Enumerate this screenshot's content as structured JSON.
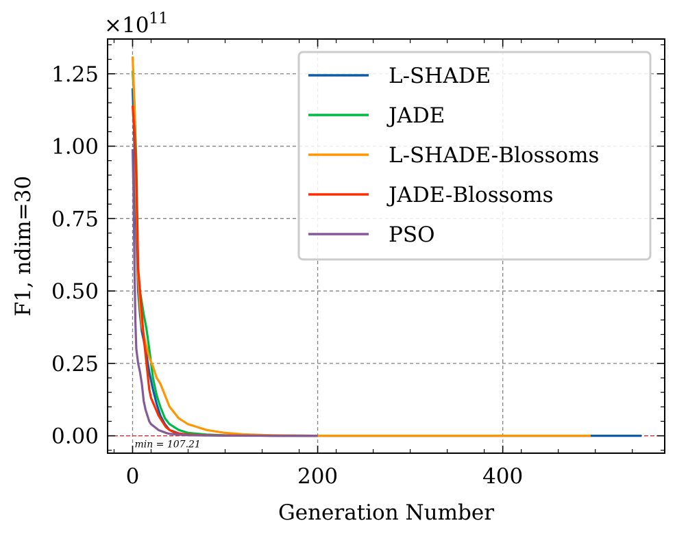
{
  "chart_data": {
    "type": "line",
    "title": "",
    "xlabel": "Generation Number",
    "ylabel": "F1, ndim=30",
    "y_scale_prefix": "×10",
    "y_scale_exponent": "11",
    "xlim": [
      -27,
      575
    ],
    "ylim": [
      -0.06,
      1.37
    ],
    "xticks": [
      0,
      200,
      400
    ],
    "xtick_labels": [
      "0",
      "200",
      "400"
    ],
    "yticks": [
      0,
      0.25,
      0.5,
      0.75,
      1.0,
      1.25
    ],
    "ytick_labels": [
      "0.00",
      "0.25",
      "0.50",
      "0.75",
      "1.00",
      "1.25"
    ],
    "grid": true,
    "legend_position": "top-right",
    "min_line_value": 0,
    "min_annotation": "min = 107.21",
    "series": [
      {
        "name": "L-SHADE",
        "color": "#0C5DA5",
        "x": [
          0,
          2,
          4,
          6,
          8,
          10,
          12,
          15,
          18,
          22,
          26,
          30,
          35,
          40,
          50,
          60,
          80,
          100,
          150,
          200,
          300,
          400,
          500,
          550
        ],
        "y": [
          1.2,
          1.0,
          0.7,
          0.5,
          0.42,
          0.36,
          0.33,
          0.28,
          0.22,
          0.16,
          0.11,
          0.07,
          0.04,
          0.02,
          0.008,
          0.004,
          0.002,
          0.001,
          0.0003,
          0.0001,
          0,
          0,
          0,
          0
        ]
      },
      {
        "name": "JADE",
        "color": "#00B945",
        "x": [
          0,
          2,
          4,
          6,
          8,
          10,
          12,
          15,
          18,
          22,
          26,
          30,
          35,
          40,
          45,
          50,
          60,
          80,
          100,
          150,
          200
        ],
        "y": [
          1.26,
          1.15,
          0.95,
          0.57,
          0.5,
          0.46,
          0.42,
          0.37,
          0.3,
          0.2,
          0.14,
          0.1,
          0.06,
          0.04,
          0.03,
          0.02,
          0.01,
          0.004,
          0.002,
          0.0005,
          0
        ]
      },
      {
        "name": "L-SHADE-Blossoms",
        "color": "#FF9500",
        "x": [
          0,
          2,
          4,
          6,
          8,
          10,
          14,
          18,
          22,
          26,
          30,
          35,
          40,
          50,
          60,
          70,
          80,
          100,
          120,
          150,
          200,
          300,
          400,
          495
        ],
        "y": [
          1.31,
          1.15,
          0.8,
          0.55,
          0.45,
          0.38,
          0.32,
          0.27,
          0.24,
          0.2,
          0.18,
          0.14,
          0.1,
          0.06,
          0.04,
          0.03,
          0.02,
          0.01,
          0.005,
          0.002,
          0,
          0,
          0,
          0
        ]
      },
      {
        "name": "JADE-Blossoms",
        "color": "#FF2C00",
        "x": [
          0,
          2,
          4,
          6,
          8,
          10,
          12,
          14,
          16,
          18,
          20,
          24,
          28,
          32,
          36,
          40,
          45,
          50,
          60,
          80,
          100,
          150,
          200
        ],
        "y": [
          1.14,
          1.05,
          0.9,
          0.58,
          0.5,
          0.42,
          0.34,
          0.28,
          0.22,
          0.16,
          0.13,
          0.1,
          0.07,
          0.05,
          0.03,
          0.02,
          0.012,
          0.008,
          0.004,
          0.002,
          0.001,
          0.0002,
          0
        ]
      },
      {
        "name": "PSO",
        "color": "#845B97",
        "x": [
          0,
          1,
          2,
          3,
          4,
          6,
          8,
          10,
          12,
          14,
          16,
          18,
          20,
          24,
          28,
          32,
          36,
          40,
          50,
          60,
          80,
          100,
          150,
          200
        ],
        "y": [
          0.99,
          0.85,
          0.6,
          0.4,
          0.3,
          0.25,
          0.22,
          0.18,
          0.12,
          0.09,
          0.07,
          0.05,
          0.04,
          0.03,
          0.02,
          0.015,
          0.01,
          0.007,
          0.004,
          0.002,
          0.001,
          0.0005,
          0.0001,
          0
        ]
      }
    ]
  }
}
